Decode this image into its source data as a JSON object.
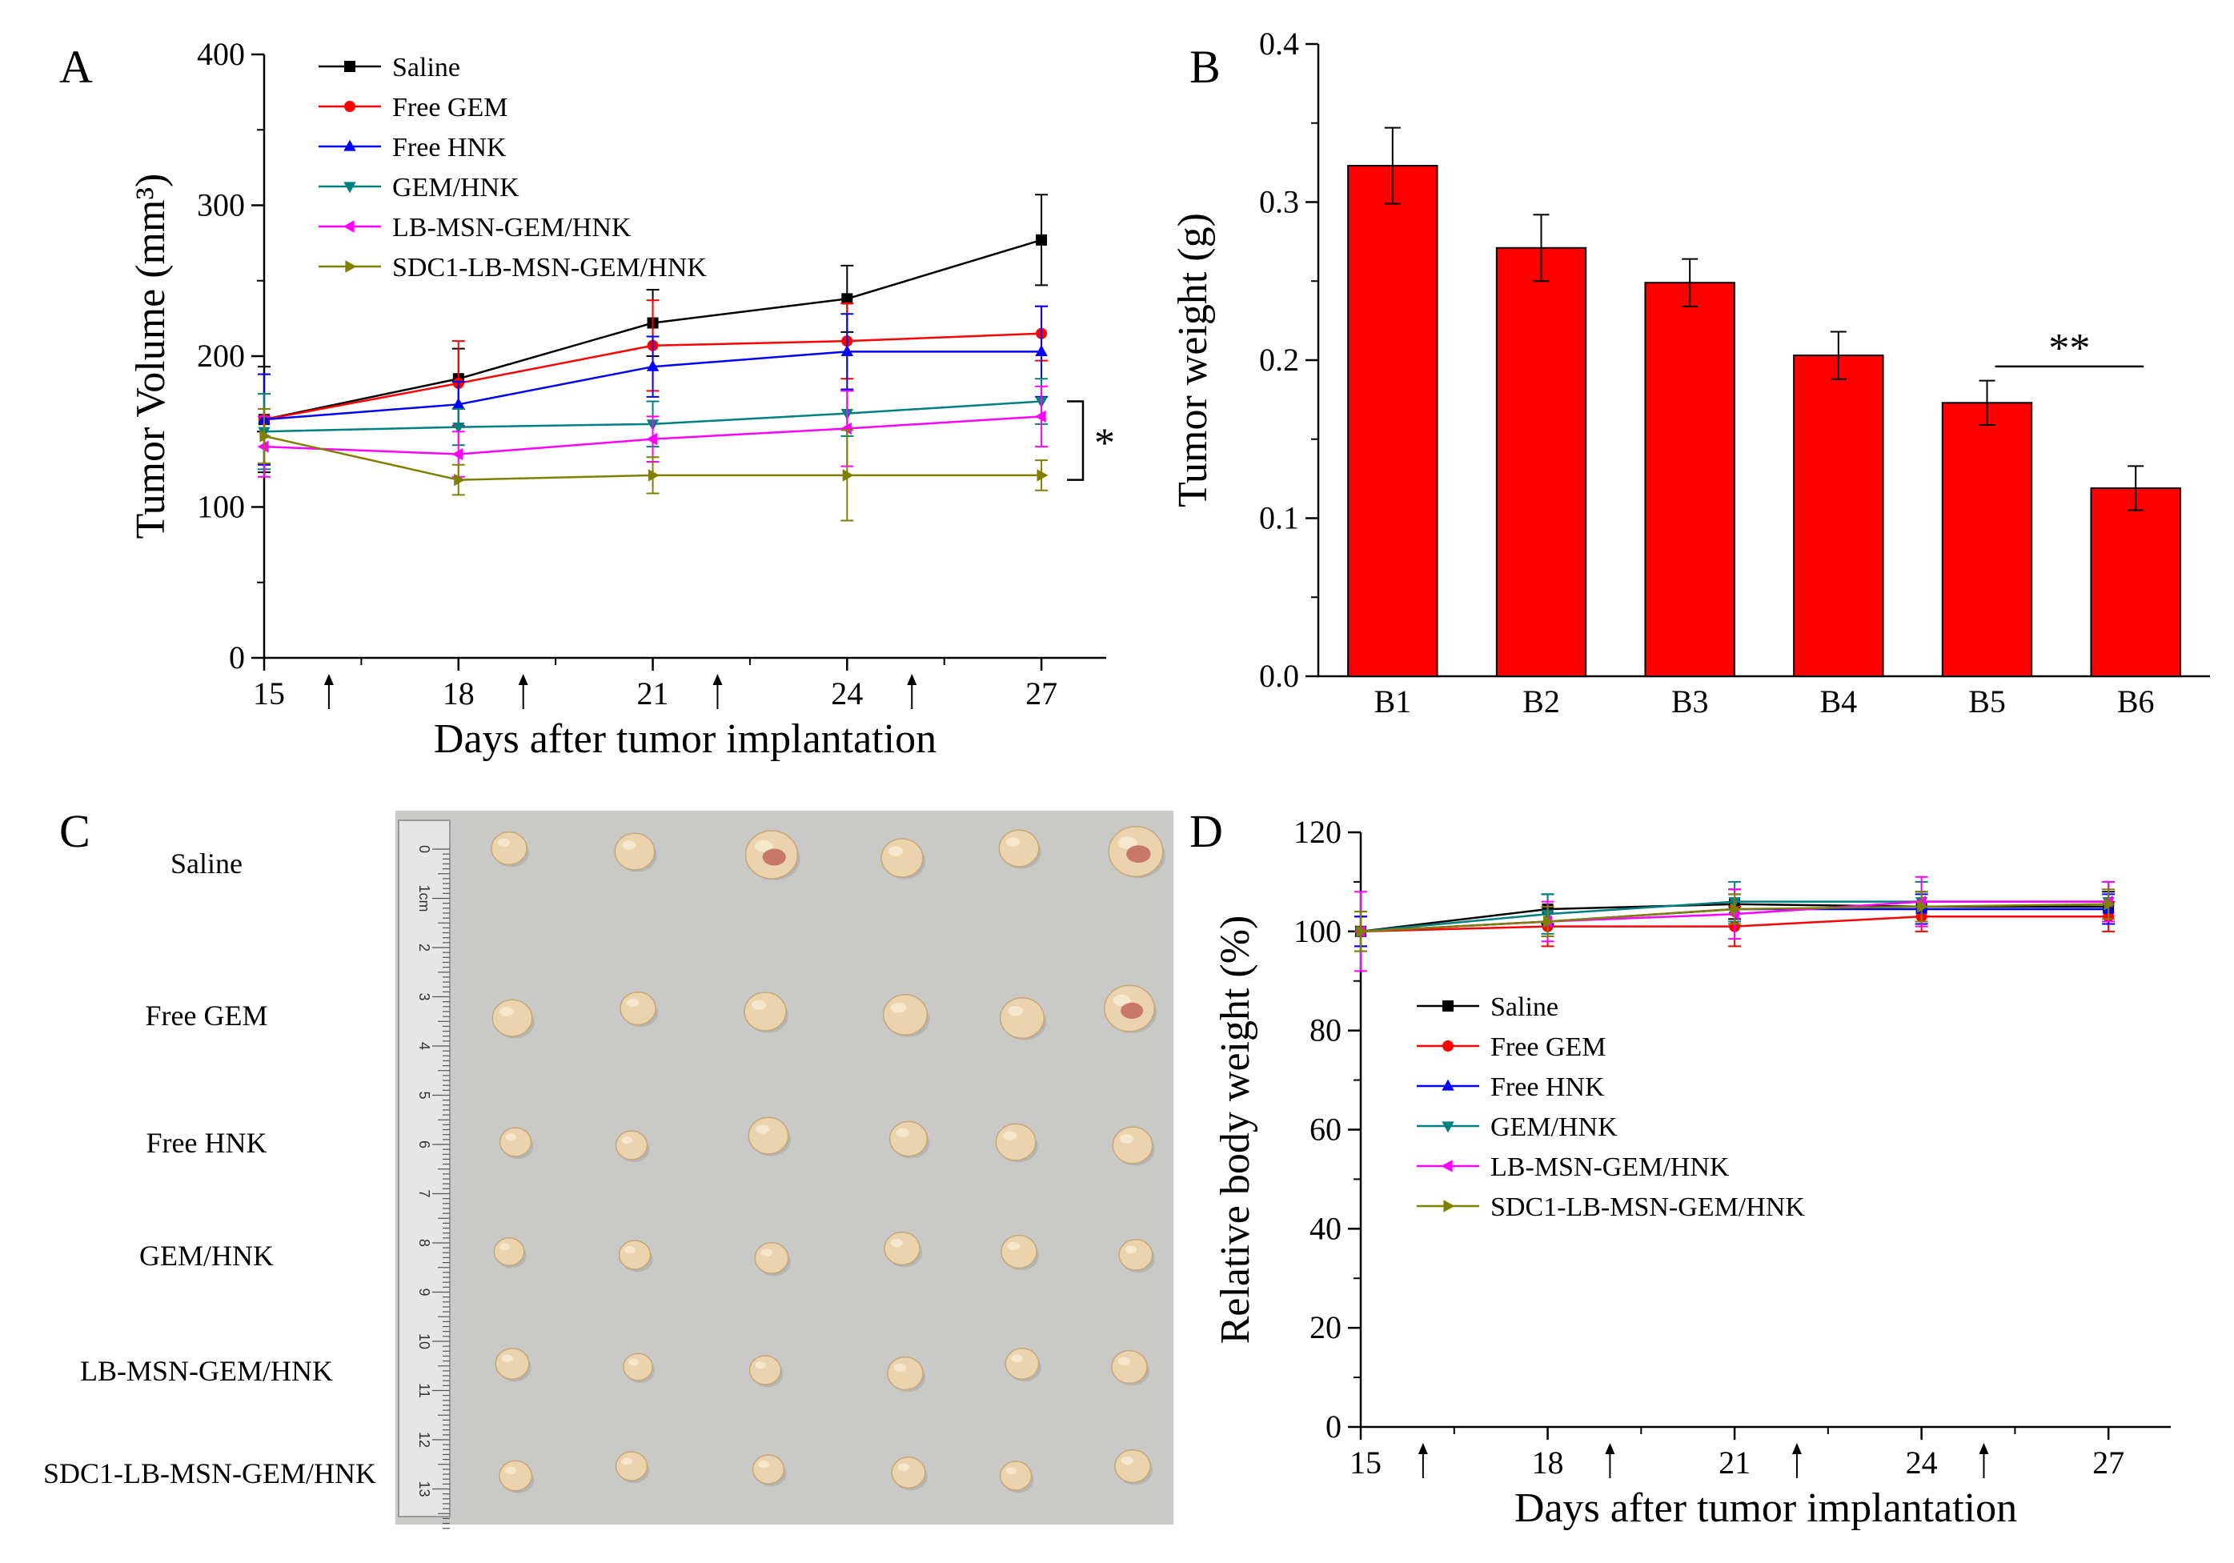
{
  "colors": {
    "saline": "#000000",
    "free_gem": "#ff0000",
    "free_hnk": "#0000ff",
    "gem_hnk": "#008080",
    "lb_msn": "#ff00ff",
    "sdc1": "#808000",
    "bar_fill": "#ff0000",
    "photo_bg": "#c9c9c7",
    "tumor": "#ead3ad"
  },
  "chart_data": [
    {
      "panel": "A",
      "type": "line",
      "xlabel": "Days after tumor implantation",
      "ylabel": "Tumor Volume (mm³)",
      "xlim": [
        15,
        28
      ],
      "ylim": [
        0,
        400
      ],
      "xticks": [
        15,
        18,
        21,
        24,
        27
      ],
      "yticks": [
        0,
        100,
        200,
        300,
        400
      ],
      "x": [
        15,
        18,
        21,
        24,
        27
      ],
      "dosing_days": [
        16,
        19,
        22,
        25
      ],
      "series": [
        {
          "name": "Saline",
          "color": "#000000",
          "marker": "square",
          "values": [
            158,
            185,
            222,
            238,
            277
          ],
          "err": [
            35,
            20,
            22,
            22,
            30
          ]
        },
        {
          "name": "Free GEM",
          "color": "#ff0000",
          "marker": "circle",
          "values": [
            158,
            182,
            207,
            210,
            215
          ],
          "err": [
            30,
            28,
            30,
            25,
            18
          ]
        },
        {
          "name": "Free HNK",
          "color": "#0000ff",
          "marker": "triangle-up",
          "values": [
            158,
            168,
            193,
            203,
            203
          ],
          "err": [
            30,
            15,
            20,
            25,
            30
          ]
        },
        {
          "name": "GEM/HNK",
          "color": "#008080",
          "marker": "triangle-down",
          "values": [
            150,
            153,
            155,
            162,
            170
          ],
          "err": [
            25,
            12,
            15,
            15,
            15
          ]
        },
        {
          "name": "LB-MSN-GEM/HNK",
          "color": "#ff00ff",
          "marker": "triangle-left",
          "values": [
            140,
            135,
            145,
            152,
            160
          ],
          "err": [
            20,
            15,
            15,
            25,
            20
          ]
        },
        {
          "name": "SDC1-LB-MSN-GEM/HNK",
          "color": "#808000",
          "marker": "triangle-right",
          "values": [
            147,
            118,
            121,
            121,
            121
          ],
          "err": [
            18,
            10,
            12,
            30,
            10
          ]
        }
      ],
      "annotation": "*"
    },
    {
      "panel": "B",
      "type": "bar",
      "xlabel": "",
      "ylabel": "Tumor weight (g)",
      "ylim": [
        0,
        0.4
      ],
      "yticks": [
        "0.0",
        "0.1",
        "0.2",
        "0.3",
        "0.4"
      ],
      "categories": [
        "B1",
        "B2",
        "B3",
        "B4",
        "B5",
        "B6"
      ],
      "values": [
        0.323,
        0.271,
        0.249,
        0.203,
        0.173,
        0.119
      ],
      "err": [
        0.024,
        0.021,
        0.015,
        0.015,
        0.014,
        0.014
      ],
      "annotation": "**"
    },
    {
      "panel": "D",
      "type": "line",
      "xlabel": "Days after tumor implantation",
      "ylabel": "Relative body weight (%)",
      "xlim": [
        15,
        28
      ],
      "ylim": [
        0,
        120
      ],
      "xticks": [
        15,
        18,
        21,
        24,
        27
      ],
      "yticks": [
        0,
        20,
        40,
        60,
        80,
        100,
        120
      ],
      "x": [
        15,
        18,
        21,
        24,
        27
      ],
      "dosing_days": [
        16,
        19,
        22,
        25
      ],
      "series": [
        {
          "name": "Saline",
          "color": "#000000",
          "marker": "square",
          "values": [
            100,
            104.5,
            105.5,
            105,
            105
          ],
          "err": [
            3,
            3,
            3,
            3,
            3
          ]
        },
        {
          "name": "Free GEM",
          "color": "#ff0000",
          "marker": "circle",
          "values": [
            100,
            101,
            101,
            103,
            103
          ],
          "err": [
            3,
            4,
            4,
            3,
            3
          ]
        },
        {
          "name": "Free HNK",
          "color": "#0000ff",
          "marker": "triangle-up",
          "values": [
            100,
            102,
            104.5,
            104.5,
            104.5
          ],
          "err": [
            3,
            3,
            3,
            3,
            3
          ]
        },
        {
          "name": "GEM/HNK",
          "color": "#008080",
          "marker": "triangle-down",
          "values": [
            100,
            103.5,
            106,
            106,
            106
          ],
          "err": [
            4,
            4,
            4,
            4,
            4
          ]
        },
        {
          "name": "LB-MSN-GEM/HNK",
          "color": "#ff00ff",
          "marker": "triangle-left",
          "values": [
            100,
            102,
            103.5,
            106,
            106
          ],
          "err": [
            8,
            4,
            5,
            5,
            4
          ]
        },
        {
          "name": "SDC1-LB-MSN-GEM/HNK",
          "color": "#808000",
          "marker": "triangle-right",
          "values": [
            100,
            102,
            104.5,
            105,
            105.5
          ],
          "err": [
            4,
            3,
            3,
            3,
            3
          ]
        }
      ]
    }
  ],
  "panels": {
    "a_label": "A",
    "b_label": "B",
    "c_label": "C",
    "d_label": "D"
  },
  "panel_c": {
    "rows": [
      "Saline",
      "Free GEM",
      "Free HNK",
      "GEM/HNK",
      "LB-MSN-GEM/HNK",
      "SDC1-LB-MSN-GEM/HNK"
    ],
    "tumors_per_row": 6,
    "tumor_scale": [
      [
        0.85,
        0.95,
        1.25,
        1.0,
        0.95,
        1.3
      ],
      [
        0.95,
        0.85,
        1.0,
        1.05,
        1.05,
        1.2
      ],
      [
        0.75,
        0.75,
        0.95,
        0.9,
        0.95,
        0.95
      ],
      [
        0.72,
        0.75,
        0.8,
        0.85,
        0.85,
        0.8
      ],
      [
        0.8,
        0.7,
        0.75,
        0.85,
        0.8,
        0.85
      ],
      [
        0.78,
        0.75,
        0.75,
        0.8,
        0.75,
        0.85
      ]
    ],
    "ruler_marks": [
      "0",
      "1cm",
      "2",
      "3",
      "4",
      "5",
      "6",
      "7",
      "8",
      "9",
      "10",
      "11",
      "12",
      "13"
    ]
  }
}
